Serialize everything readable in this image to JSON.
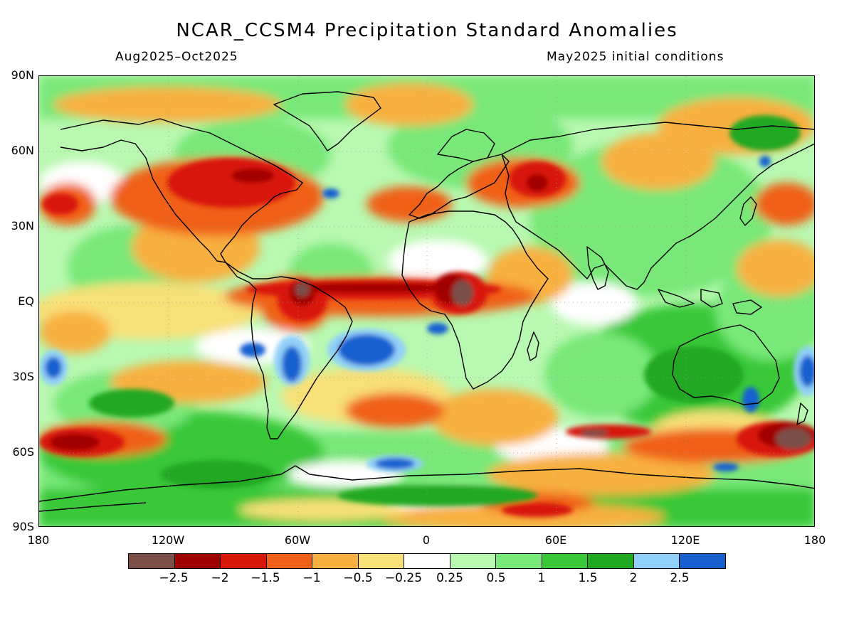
{
  "title": "NCAR_CCSM4 Precipitation Standard Anomalies",
  "subtitle_left": "Aug2025–Oct2025",
  "subtitle_right": "May2025 initial conditions",
  "lat_labels": [
    "90N",
    "60N",
    "30N",
    "EQ",
    "30S",
    "60S",
    "90S"
  ],
  "lon_labels": [
    "180",
    "120W",
    "60W",
    "0",
    "60E",
    "120E",
    "180"
  ],
  "colorbar": {
    "labels": [
      "−2.5",
      "−2",
      "−1.5",
      "−1",
      "−0.5",
      "−0.25",
      "0.25",
      "0.5",
      "1",
      "1.5",
      "2",
      "2.5"
    ],
    "colors": [
      "#7a5048",
      "#a00000",
      "#d81808",
      "#f06018",
      "#f8b040",
      "#f8e078",
      "#ffffff",
      "#b8f8b0",
      "#78e878",
      "#38c838",
      "#20a820",
      "#90d0f8",
      "#1860d0"
    ]
  },
  "map": {
    "ocean_background": "#ffffff",
    "coastline_color": "#000000"
  }
}
